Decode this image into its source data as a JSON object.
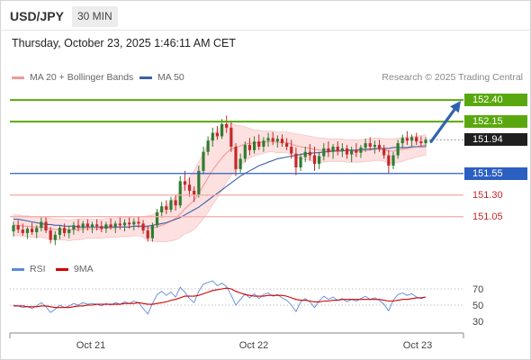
{
  "header": {
    "symbol": "USD/JPY",
    "timeframe": "30 MIN",
    "timestamp": "Thursday, October 23, 2025 1:46:11 AM CET"
  },
  "legend": {
    "ma20_label": "MA 20 + Bollinger Bands",
    "ma50_label": "MA 50",
    "credit": "Research © 2025 Trading Central"
  },
  "colors": {
    "up_candle": "#2e7d32",
    "down_candle": "#c62828",
    "ma20": "#f19a9a",
    "bollinger_fill": "#fde0e0",
    "ma50": "#3d62a8",
    "resistance": "#5aa80f",
    "support": "#2c5fc2",
    "target_line": "#f2aaa5",
    "rsi": "#5b8bd9",
    "rsi_ma": "#d40000",
    "arrow": "#2f63ad",
    "last_price_bg": "#1f1f1f"
  },
  "chart_data": [
    {
      "type": "candlestick",
      "x_tick_labels": [
        "Oct 21",
        "Oct 22",
        "Oct 23"
      ],
      "ylim": [
        150.62,
        152.62
      ],
      "resistance_levels": [
        152.4,
        152.15
      ],
      "pivot_level": 151.55,
      "target_levels": [
        151.3,
        151.05
      ],
      "last_price": 151.94,
      "last_price_label": "151.94",
      "level_labels": [
        "152.40",
        "152.15",
        "151.55",
        "151.30",
        "151.05"
      ],
      "ohlc": [
        [
          150.88,
          150.99,
          150.82,
          150.95
        ],
        [
          150.95,
          151.01,
          150.86,
          150.9
        ],
        [
          150.9,
          150.97,
          150.83,
          150.86
        ],
        [
          150.86,
          150.93,
          150.79,
          150.91
        ],
        [
          150.91,
          150.98,
          150.84,
          150.87
        ],
        [
          150.87,
          150.95,
          150.8,
          150.92
        ],
        [
          150.92,
          151.04,
          150.88,
          150.99
        ],
        [
          150.99,
          151.04,
          150.86,
          150.89
        ],
        [
          150.89,
          150.93,
          150.74,
          150.78
        ],
        [
          150.78,
          150.88,
          150.72,
          150.84
        ],
        [
          150.84,
          150.95,
          150.79,
          150.92
        ],
        [
          150.92,
          150.97,
          150.82,
          150.86
        ],
        [
          150.86,
          150.94,
          150.8,
          150.9
        ],
        [
          150.9,
          150.99,
          150.84,
          150.95
        ],
        [
          150.95,
          151.02,
          150.88,
          150.92
        ],
        [
          150.92,
          151.0,
          150.86,
          150.97
        ],
        [
          150.97,
          151.02,
          150.89,
          150.93
        ],
        [
          150.93,
          150.99,
          150.86,
          150.96
        ],
        [
          150.96,
          151.02,
          150.89,
          150.94
        ],
        [
          150.94,
          151.0,
          150.87,
          150.91
        ],
        [
          150.91,
          150.99,
          150.86,
          150.96
        ],
        [
          150.96,
          151.03,
          150.9,
          150.93
        ],
        [
          150.93,
          151.0,
          150.86,
          150.97
        ],
        [
          150.97,
          151.04,
          150.9,
          150.95
        ],
        [
          150.95,
          151.02,
          150.88,
          150.98
        ],
        [
          150.98,
          151.04,
          150.91,
          150.96
        ],
        [
          150.96,
          151.03,
          150.89,
          150.99
        ],
        [
          150.99,
          151.05,
          150.92,
          150.97
        ],
        [
          150.97,
          151.01,
          150.85,
          150.89
        ],
        [
          150.89,
          150.94,
          150.76,
          150.8
        ],
        [
          150.8,
          150.98,
          150.76,
          150.95
        ],
        [
          150.95,
          151.14,
          150.92,
          151.1
        ],
        [
          151.1,
          151.22,
          151.04,
          151.17
        ],
        [
          151.17,
          151.24,
          151.08,
          151.13
        ],
        [
          151.13,
          151.28,
          151.1,
          151.24
        ],
        [
          151.24,
          151.3,
          151.12,
          151.18
        ],
        [
          151.18,
          151.52,
          151.15,
          151.46
        ],
        [
          151.46,
          151.58,
          151.35,
          151.42
        ],
        [
          151.42,
          151.5,
          151.28,
          151.35
        ],
        [
          151.35,
          151.4,
          151.22,
          151.3
        ],
        [
          151.3,
          151.64,
          151.27,
          151.58
        ],
        [
          151.58,
          151.86,
          151.54,
          151.8
        ],
        [
          151.8,
          151.98,
          151.76,
          151.93
        ],
        [
          151.93,
          152.08,
          151.86,
          152.02
        ],
        [
          152.02,
          152.1,
          151.94,
          151.98
        ],
        [
          151.98,
          152.18,
          151.95,
          152.12
        ],
        [
          152.12,
          152.22,
          152.02,
          152.08
        ],
        [
          152.08,
          152.16,
          151.8,
          151.86
        ],
        [
          151.86,
          151.9,
          151.52,
          151.6
        ],
        [
          151.6,
          151.78,
          151.56,
          151.72
        ],
        [
          151.72,
          151.92,
          151.68,
          151.88
        ],
        [
          151.88,
          151.96,
          151.76,
          151.82
        ],
        [
          151.82,
          151.98,
          151.78,
          151.92
        ],
        [
          151.92,
          152.0,
          151.82,
          151.86
        ],
        [
          151.86,
          151.97,
          151.8,
          151.93
        ],
        [
          151.93,
          152.02,
          151.86,
          151.96
        ],
        [
          151.96,
          152.03,
          151.88,
          151.92
        ],
        [
          151.92,
          151.99,
          151.85,
          151.95
        ],
        [
          151.95,
          152.0,
          151.86,
          151.9
        ],
        [
          151.9,
          151.96,
          151.82,
          151.86
        ],
        [
          151.86,
          151.94,
          151.72,
          151.78
        ],
        [
          151.78,
          151.85,
          151.53,
          151.62
        ],
        [
          151.62,
          151.78,
          151.58,
          151.74
        ],
        [
          151.74,
          151.86,
          151.68,
          151.8
        ],
        [
          151.8,
          151.89,
          151.7,
          151.76
        ],
        [
          151.76,
          151.86,
          151.58,
          151.66
        ],
        [
          151.66,
          151.8,
          151.6,
          151.75
        ],
        [
          151.75,
          151.9,
          151.7,
          151.84
        ],
        [
          151.84,
          151.92,
          151.74,
          151.8
        ],
        [
          151.8,
          151.89,
          151.72,
          151.86
        ],
        [
          151.86,
          151.92,
          151.76,
          151.81
        ],
        [
          151.81,
          151.9,
          151.74,
          151.84
        ],
        [
          151.84,
          151.88,
          151.72,
          151.77
        ],
        [
          151.77,
          151.86,
          151.68,
          151.82
        ],
        [
          151.82,
          151.9,
          151.74,
          151.79
        ],
        [
          151.79,
          151.88,
          151.73,
          151.85
        ],
        [
          151.85,
          151.95,
          151.8,
          151.9
        ],
        [
          151.9,
          151.97,
          151.82,
          151.86
        ],
        [
          151.86,
          151.93,
          151.78,
          151.88
        ],
        [
          151.88,
          151.94,
          151.8,
          151.84
        ],
        [
          151.84,
          151.88,
          151.72,
          151.76
        ],
        [
          151.76,
          151.82,
          151.55,
          151.64
        ],
        [
          151.64,
          151.8,
          151.6,
          151.76
        ],
        [
          151.76,
          151.94,
          151.72,
          151.9
        ],
        [
          151.9,
          152.0,
          151.84,
          151.96
        ],
        [
          151.96,
          152.04,
          151.88,
          151.93
        ],
        [
          151.93,
          152.0,
          151.86,
          151.97
        ],
        [
          151.97,
          152.02,
          151.88,
          151.92
        ],
        [
          151.92,
          151.98,
          151.86,
          151.9
        ],
        [
          151.9,
          151.97,
          151.86,
          151.94
        ]
      ],
      "ma20": [
        150.95,
        150.95,
        150.94,
        150.94,
        150.93,
        150.93,
        150.93,
        150.92,
        150.91,
        150.9,
        150.9,
        150.9,
        150.89,
        150.9,
        150.9,
        150.91,
        150.91,
        150.91,
        150.91,
        150.91,
        150.92,
        150.92,
        150.92,
        150.93,
        150.93,
        150.93,
        150.94,
        150.94,
        150.93,
        150.92,
        150.92,
        150.93,
        150.95,
        150.97,
        151.0,
        151.03,
        151.08,
        151.14,
        151.19,
        151.24,
        151.32,
        151.41,
        151.5,
        151.59,
        151.66,
        151.73,
        151.79,
        151.83,
        151.85,
        151.87,
        151.89,
        151.9,
        151.9,
        151.91,
        151.91,
        151.92,
        151.92,
        151.91,
        151.91,
        151.91,
        151.89,
        151.87,
        151.86,
        151.85,
        151.84,
        151.83,
        151.82,
        151.82,
        151.82,
        151.82,
        151.82,
        151.82,
        151.81,
        151.81,
        151.81,
        151.81,
        151.82,
        151.82,
        151.83,
        151.83,
        151.82,
        151.81,
        151.81,
        151.82,
        151.83,
        151.84,
        151.85,
        151.86,
        151.87,
        151.88
      ],
      "bb_width": [
        0.12,
        0.12,
        0.12,
        0.12,
        0.12,
        0.12,
        0.12,
        0.12,
        0.12,
        0.12,
        0.12,
        0.12,
        0.12,
        0.12,
        0.12,
        0.12,
        0.11,
        0.11,
        0.11,
        0.11,
        0.11,
        0.11,
        0.11,
        0.11,
        0.11,
        0.11,
        0.11,
        0.11,
        0.12,
        0.14,
        0.15,
        0.17,
        0.19,
        0.21,
        0.23,
        0.25,
        0.27,
        0.29,
        0.32,
        0.34,
        0.36,
        0.38,
        0.4,
        0.4,
        0.39,
        0.37,
        0.34,
        0.3,
        0.26,
        0.23,
        0.2,
        0.17,
        0.15,
        0.14,
        0.13,
        0.12,
        0.12,
        0.12,
        0.12,
        0.12,
        0.13,
        0.14,
        0.14,
        0.14,
        0.14,
        0.14,
        0.14,
        0.14,
        0.13,
        0.13,
        0.13,
        0.13,
        0.13,
        0.13,
        0.13,
        0.13,
        0.13,
        0.13,
        0.13,
        0.13,
        0.13,
        0.14,
        0.14,
        0.14,
        0.14,
        0.13,
        0.13,
        0.12,
        0.12,
        0.12
      ],
      "ma50": [
        151.02,
        151.02,
        151.01,
        151.0,
        150.99,
        150.98,
        150.97,
        150.96,
        150.96,
        150.95,
        150.95,
        150.94,
        150.94,
        150.94,
        150.93,
        150.93,
        150.93,
        150.93,
        150.93,
        150.93,
        150.93,
        150.93,
        150.93,
        150.93,
        150.93,
        150.93,
        150.94,
        150.94,
        150.94,
        150.94,
        150.95,
        150.96,
        150.97,
        150.98,
        151.0,
        151.02,
        151.04,
        151.07,
        151.1,
        151.13,
        151.16,
        151.2,
        151.24,
        151.28,
        151.32,
        151.36,
        151.4,
        151.44,
        151.48,
        151.52,
        151.55,
        151.58,
        151.61,
        151.64,
        151.66,
        151.68,
        151.7,
        151.72,
        151.73,
        151.74,
        151.75,
        151.76,
        151.77,
        151.78,
        151.78,
        151.79,
        151.79,
        151.8,
        151.8,
        151.81,
        151.81,
        151.81,
        151.82,
        151.82,
        151.82,
        151.83,
        151.83,
        151.83,
        151.84,
        151.84,
        151.84,
        151.84,
        151.85,
        151.85,
        151.85,
        151.85,
        151.86,
        151.86,
        151.86,
        151.86
      ]
    },
    {
      "type": "line",
      "legend": [
        "RSI",
        "9MA"
      ],
      "y_tick_labels": [
        "70",
        "50",
        "30"
      ],
      "ylim": [
        20,
        80
      ],
      "rsi": [
        50,
        49,
        47,
        48,
        46,
        49,
        53,
        48,
        41,
        45,
        50,
        47,
        49,
        52,
        50,
        53,
        51,
        52,
        51,
        49,
        52,
        50,
        53,
        51,
        54,
        52,
        55,
        53,
        46,
        39,
        52,
        63,
        67,
        62,
        66,
        60,
        72,
        66,
        58,
        53,
        67,
        76,
        78,
        80,
        74,
        77,
        73,
        62,
        50,
        57,
        64,
        59,
        64,
        58,
        63,
        65,
        61,
        63,
        59,
        56,
        50,
        42,
        54,
        58,
        54,
        47,
        55,
        61,
        57,
        60,
        56,
        58,
        54,
        57,
        55,
        58,
        61,
        57,
        59,
        56,
        51,
        43,
        56,
        63,
        65,
        62,
        64,
        60,
        58,
        60
      ],
      "rsi_ma": [
        49,
        49,
        49,
        48,
        48,
        48,
        49,
        49,
        48,
        47,
        47,
        47,
        47,
        48,
        49,
        49,
        50,
        50,
        51,
        51,
        51,
        51,
        51,
        51,
        52,
        52,
        52,
        53,
        52,
        51,
        51,
        52,
        53,
        54,
        56,
        57,
        59,
        61,
        61,
        61,
        62,
        64,
        66,
        68,
        69,
        70,
        71,
        70,
        67,
        65,
        63,
        62,
        61,
        61,
        61,
        62,
        62,
        62,
        62,
        61,
        59,
        57,
        56,
        56,
        55,
        54,
        54,
        55,
        55,
        56,
        56,
        57,
        57,
        57,
        57,
        57,
        57,
        57,
        57,
        57,
        56,
        55,
        55,
        56,
        57,
        57,
        58,
        59,
        59,
        60
      ]
    }
  ]
}
